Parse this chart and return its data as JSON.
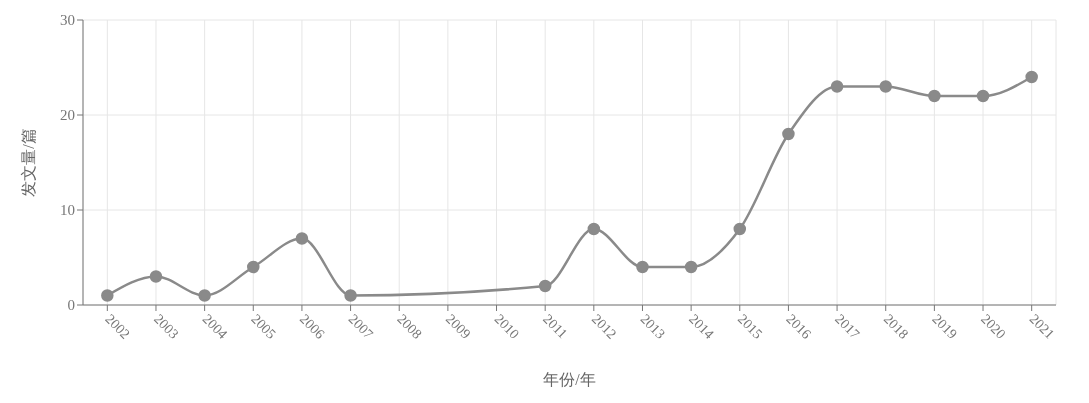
{
  "chart_data": {
    "type": "line",
    "xlabel": "年份/年",
    "ylabel": "发文量/篇",
    "x": [
      2002,
      2003,
      2004,
      2005,
      2006,
      2007,
      2011,
      2012,
      2013,
      2014,
      2015,
      2016,
      2017,
      2018,
      2019,
      2020,
      2021
    ],
    "series": [
      {
        "color": "#8a8a8a",
        "values": [
          1,
          3,
          1,
          4,
          7,
          1,
          2,
          8,
          4,
          4,
          8,
          18,
          23,
          23,
          22,
          22,
          24
        ]
      }
    ],
    "xlim": [
      2001.5,
      2021.5
    ],
    "xticks": [
      2002,
      2003,
      2004,
      2005,
      2006,
      2007,
      2008,
      2009,
      2010,
      2011,
      2012,
      2013,
      2014,
      2015,
      2016,
      2017,
      2018,
      2019,
      2020,
      2021
    ],
    "ylim": [
      0,
      30
    ],
    "yticks": [
      0,
      10,
      20,
      30
    ],
    "grid": true,
    "marker": "circle",
    "line_style": "solid"
  }
}
